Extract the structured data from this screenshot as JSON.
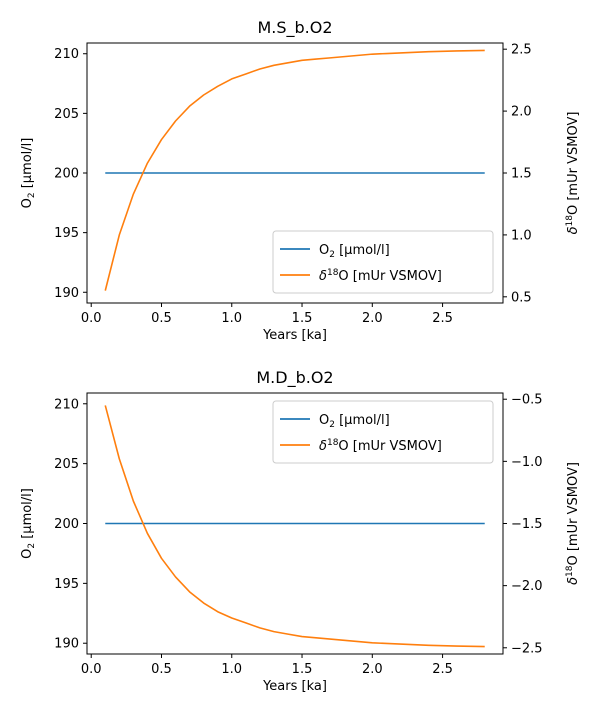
{
  "figure": {
    "colors": {
      "o2": "#1f77b4",
      "d18o": "#ff7f0e",
      "axis": "#000000",
      "legend_border": "#cccccc"
    }
  },
  "chart_data": [
    {
      "type": "line",
      "title": "M.S_b.O2",
      "xlabel": "Years [ka]",
      "ylabel_left": {
        "main": "O",
        "sub": "2",
        "rest": " [µmol/l]"
      },
      "ylabel_right": {
        "delta": "δ",
        "sup": "18",
        "rest": "O [mUr VSMOV]"
      },
      "xlim": [
        -0.03,
        2.93
      ],
      "ylim_left": [
        189.1,
        210.9
      ],
      "ylim_right": [
        0.45,
        2.55
      ],
      "xticks": [
        0.0,
        0.5,
        1.0,
        1.5,
        2.0,
        2.5
      ],
      "xtick_labels": [
        "0.0",
        "0.5",
        "1.0",
        "1.5",
        "2.0",
        "2.5"
      ],
      "yticks_left": [
        190,
        195,
        200,
        205,
        210
      ],
      "ytick_labels_left": [
        "190",
        "195",
        "200",
        "205",
        "210"
      ],
      "yticks_right": [
        0.5,
        1.0,
        1.5,
        2.0,
        2.5
      ],
      "ytick_labels_right": [
        "0.5",
        "1.0",
        "1.5",
        "2.0",
        "2.5"
      ],
      "legend_position": "lower-right",
      "series": [
        {
          "name": {
            "main": "O",
            "sub": "2",
            "rest": " [µmol/l]"
          },
          "axis": "left",
          "color": "#1f77b4",
          "x": [
            0.1,
            0.2,
            0.3,
            0.4,
            0.5,
            0.6,
            0.7,
            0.8,
            0.9,
            1.0,
            1.1,
            1.2,
            1.3,
            1.4,
            1.5,
            1.6,
            1.7,
            1.8,
            1.9,
            2.0,
            2.1,
            2.2,
            2.3,
            2.4,
            2.5,
            2.6,
            2.7,
            2.8
          ],
          "y": [
            200,
            200,
            200,
            200,
            200,
            200,
            200,
            200,
            200,
            200,
            200,
            200,
            200,
            200,
            200,
            200,
            200,
            200,
            200,
            200,
            200,
            200,
            200,
            200,
            200,
            200,
            200,
            200
          ]
        },
        {
          "name": {
            "delta": "δ",
            "sup": "18",
            "rest": "O [mUr VSMOV]"
          },
          "axis": "right",
          "color": "#ff7f0e",
          "x": [
            0.1,
            0.2,
            0.3,
            0.4,
            0.5,
            0.6,
            0.7,
            0.8,
            0.9,
            1.0,
            1.1,
            1.2,
            1.3,
            1.4,
            1.5,
            1.6,
            1.7,
            1.8,
            1.9,
            2.0,
            2.1,
            2.2,
            2.3,
            2.4,
            2.5,
            2.6,
            2.7,
            2.8
          ],
          "y": [
            0.55,
            1.0,
            1.33,
            1.58,
            1.77,
            1.92,
            2.04,
            2.13,
            2.2,
            2.26,
            2.3,
            2.34,
            2.37,
            2.39,
            2.41,
            2.42,
            2.43,
            2.44,
            2.45,
            2.46,
            2.465,
            2.47,
            2.475,
            2.48,
            2.483,
            2.486,
            2.488,
            2.49
          ]
        }
      ]
    },
    {
      "type": "line",
      "title": "M.D_b.O2",
      "xlabel": "Years [ka]",
      "ylabel_left": {
        "main": "O",
        "sub": "2",
        "rest": " [µmol/l]"
      },
      "ylabel_right": {
        "delta": "δ",
        "sup": "18",
        "rest": "O [mUr VSMOV]"
      },
      "xlim": [
        -0.03,
        2.93
      ],
      "ylim_left": [
        189.1,
        210.9
      ],
      "ylim_right": [
        -2.55,
        -0.45
      ],
      "xticks": [
        0.0,
        0.5,
        1.0,
        1.5,
        2.0,
        2.5
      ],
      "xtick_labels": [
        "0.0",
        "0.5",
        "1.0",
        "1.5",
        "2.0",
        "2.5"
      ],
      "yticks_left": [
        190,
        195,
        200,
        205,
        210
      ],
      "ytick_labels_left": [
        "190",
        "195",
        "200",
        "205",
        "210"
      ],
      "yticks_right": [
        -2.5,
        -2.0,
        -1.5,
        -1.0,
        -0.5
      ],
      "ytick_labels_right": [
        "−2.5",
        "−2.0",
        "−1.5",
        "−1.0",
        "−0.5"
      ],
      "legend_position": "top-right",
      "series": [
        {
          "name": {
            "main": "O",
            "sub": "2",
            "rest": " [µmol/l]"
          },
          "axis": "left",
          "color": "#1f77b4",
          "x": [
            0.1,
            0.2,
            0.3,
            0.4,
            0.5,
            0.6,
            0.7,
            0.8,
            0.9,
            1.0,
            1.1,
            1.2,
            1.3,
            1.4,
            1.5,
            1.6,
            1.7,
            1.8,
            1.9,
            2.0,
            2.1,
            2.2,
            2.3,
            2.4,
            2.5,
            2.6,
            2.7,
            2.8
          ],
          "y": [
            200,
            200,
            200,
            200,
            200,
            200,
            200,
            200,
            200,
            200,
            200,
            200,
            200,
            200,
            200,
            200,
            200,
            200,
            200,
            200,
            200,
            200,
            200,
            200,
            200,
            200,
            200,
            200
          ]
        },
        {
          "name": {
            "delta": "δ",
            "sup": "18",
            "rest": "O [mUr VSMOV]"
          },
          "axis": "right",
          "color": "#ff7f0e",
          "x": [
            0.1,
            0.2,
            0.3,
            0.4,
            0.5,
            0.6,
            0.7,
            0.8,
            0.9,
            1.0,
            1.1,
            1.2,
            1.3,
            1.4,
            1.5,
            1.6,
            1.7,
            1.8,
            1.9,
            2.0,
            2.1,
            2.2,
            2.3,
            2.4,
            2.5,
            2.6,
            2.7,
            2.8
          ],
          "y": [
            -0.55,
            -0.98,
            -1.32,
            -1.58,
            -1.78,
            -1.93,
            -2.05,
            -2.14,
            -2.21,
            -2.26,
            -2.3,
            -2.34,
            -2.37,
            -2.39,
            -2.41,
            -2.42,
            -2.43,
            -2.44,
            -2.45,
            -2.46,
            -2.465,
            -2.47,
            -2.475,
            -2.48,
            -2.483,
            -2.486,
            -2.488,
            -2.49
          ]
        }
      ]
    }
  ]
}
